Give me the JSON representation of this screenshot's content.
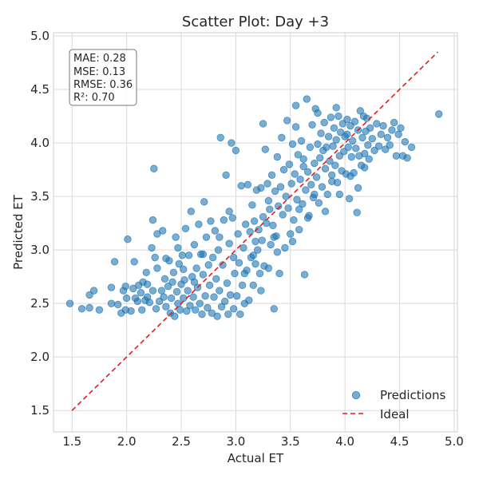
{
  "chart_data": {
    "type": "scatter",
    "title": "Scatter Plot: Day +3",
    "xlabel": "Actual ET",
    "ylabel": "Predicted ET",
    "xlim": [
      1.33,
      5.03
    ],
    "ylim": [
      1.3,
      5.03
    ],
    "xticks": [
      "1.5",
      "2.0",
      "2.5",
      "3.0",
      "3.5",
      "4.0",
      "4.5",
      "5.0"
    ],
    "yticks": [
      "1.5",
      "2.0",
      "2.5",
      "3.0",
      "3.5",
      "4.0",
      "4.5",
      "5.0"
    ],
    "grid": true,
    "legend_position": "bottom-right",
    "stats": [
      "MAE: 0.28",
      "MSE: 0.13",
      "RMSE: 0.36",
      "R²: 0.70"
    ],
    "series": [
      {
        "name": "Predictions",
        "color": "#1f77b4",
        "points": [
          [
            1.48,
            2.5
          ],
          [
            1.59,
            2.45
          ],
          [
            1.66,
            2.46
          ],
          [
            1.66,
            2.58
          ],
          [
            1.7,
            2.62
          ],
          [
            1.75,
            2.44
          ],
          [
            1.86,
            2.65
          ],
          [
            1.86,
            2.5
          ],
          [
            1.89,
            2.89
          ],
          [
            1.92,
            2.49
          ],
          [
            1.95,
            2.41
          ],
          [
            1.97,
            2.62
          ],
          [
            1.99,
            2.66
          ],
          [
            1.99,
            2.44
          ],
          [
            2.0,
            2.55
          ],
          [
            2.01,
            3.1
          ],
          [
            2.04,
            2.43
          ],
          [
            2.06,
            2.64
          ],
          [
            2.07,
            2.89
          ],
          [
            2.08,
            2.55
          ],
          [
            2.11,
            2.67
          ],
          [
            2.13,
            2.6
          ],
          [
            2.14,
            2.44
          ],
          [
            2.15,
            2.7
          ],
          [
            2.17,
            2.53
          ],
          [
            2.18,
            2.79
          ],
          [
            2.19,
            2.56
          ],
          [
            2.21,
            2.51
          ],
          [
            2.23,
            3.02
          ],
          [
            2.24,
            2.62
          ],
          [
            2.25,
            3.76
          ],
          [
            2.24,
            3.28
          ],
          [
            2.26,
            2.93
          ],
          [
            2.27,
            2.45
          ],
          [
            2.28,
            3.15
          ],
          [
            2.3,
            2.52
          ],
          [
            2.32,
            2.62
          ],
          [
            2.33,
            3.18
          ],
          [
            2.34,
            2.56
          ],
          [
            2.35,
            2.73
          ],
          [
            2.36,
            2.47
          ],
          [
            2.38,
            2.66
          ],
          [
            2.39,
            2.9
          ],
          [
            2.4,
            2.41
          ],
          [
            2.41,
            2.55
          ],
          [
            2.42,
            2.7
          ],
          [
            2.43,
            2.79
          ],
          [
            2.44,
            2.38
          ],
          [
            2.45,
            3.12
          ],
          [
            2.46,
            2.61
          ],
          [
            2.47,
            2.5
          ],
          [
            2.48,
            2.87
          ],
          [
            2.49,
            2.44
          ],
          [
            2.5,
            2.68
          ],
          [
            2.51,
            2.95
          ],
          [
            2.52,
            2.55
          ],
          [
            2.53,
            2.72
          ],
          [
            2.54,
            3.2
          ],
          [
            2.55,
            2.43
          ],
          [
            2.56,
            2.62
          ],
          [
            2.57,
            2.95
          ],
          [
            2.58,
            2.48
          ],
          [
            2.59,
            3.36
          ],
          [
            2.6,
            2.75
          ],
          [
            2.61,
            2.56
          ],
          [
            2.62,
            3.05
          ],
          [
            2.63,
            2.44
          ],
          [
            2.64,
            2.83
          ],
          [
            2.65,
            2.65
          ],
          [
            2.66,
            3.24
          ],
          [
            2.67,
            2.5
          ],
          [
            2.68,
            2.96
          ],
          [
            2.69,
            2.4
          ],
          [
            2.7,
            2.77
          ],
          [
            2.71,
            3.45
          ],
          [
            2.72,
            2.57
          ],
          [
            2.73,
            3.12
          ],
          [
            2.74,
            2.46
          ],
          [
            2.75,
            2.86
          ],
          [
            2.76,
            2.67
          ],
          [
            2.77,
            3.27
          ],
          [
            2.78,
            2.41
          ],
          [
            2.79,
            2.93
          ],
          [
            2.8,
            2.56
          ],
          [
            2.81,
            3.18
          ],
          [
            2.82,
            2.73
          ],
          [
            2.83,
            2.38
          ],
          [
            2.84,
            3.0
          ],
          [
            2.85,
            2.62
          ],
          [
            2.86,
            4.05
          ],
          [
            2.87,
            2.47
          ],
          [
            2.88,
            2.86
          ],
          [
            2.89,
            3.28
          ],
          [
            2.9,
            2.52
          ],
          [
            2.91,
            3.7
          ],
          [
            2.92,
            2.69
          ],
          [
            2.93,
            2.4
          ],
          [
            2.94,
            3.06
          ],
          [
            2.95,
            2.58
          ],
          [
            2.96,
            4.0
          ],
          [
            2.97,
            3.3
          ],
          [
            2.98,
            2.45
          ],
          [
            2.99,
            2.78
          ],
          [
            3.0,
            3.93
          ],
          [
            3.01,
            2.57
          ],
          [
            3.02,
            3.15
          ],
          [
            3.03,
            2.88
          ],
          [
            3.04,
            2.4
          ],
          [
            3.05,
            3.6
          ],
          [
            3.06,
            2.67
          ],
          [
            3.07,
            3.02
          ],
          [
            3.08,
            2.5
          ],
          [
            3.09,
            3.24
          ],
          [
            3.1,
            2.81
          ],
          [
            3.11,
            3.61
          ],
          [
            3.12,
            2.53
          ],
          [
            3.13,
            3.17
          ],
          [
            3.14,
            2.93
          ],
          [
            3.15,
            3.42
          ],
          [
            3.16,
            2.67
          ],
          [
            3.17,
            3.27
          ],
          [
            3.18,
            2.87
          ],
          [
            3.19,
            3.56
          ],
          [
            3.2,
            3.0
          ],
          [
            3.21,
            3.19
          ],
          [
            3.22,
            2.78
          ],
          [
            3.23,
            3.58
          ],
          [
            3.24,
            3.09
          ],
          [
            3.25,
            3.31
          ],
          [
            3.26,
            2.85
          ],
          [
            3.27,
            3.94
          ],
          [
            3.28,
            3.25
          ],
          [
            3.29,
            3.62
          ],
          [
            3.3,
            2.83
          ],
          [
            3.31,
            3.38
          ],
          [
            3.32,
            3.05
          ],
          [
            3.33,
            3.7
          ],
          [
            3.34,
            3.23
          ],
          [
            3.35,
            2.45
          ],
          [
            3.36,
            3.55
          ],
          [
            3.37,
            3.13
          ],
          [
            3.38,
            3.87
          ],
          [
            3.39,
            3.41
          ],
          [
            3.4,
            2.78
          ],
          [
            3.41,
            3.59
          ],
          [
            3.42,
            4.05
          ],
          [
            3.43,
            3.33
          ],
          [
            3.44,
            3.75
          ],
          [
            3.45,
            3.02
          ],
          [
            3.46,
            3.5
          ],
          [
            3.47,
            4.21
          ],
          [
            3.48,
            3.39
          ],
          [
            3.49,
            3.8
          ],
          [
            3.5,
            3.15
          ],
          [
            3.51,
            3.62
          ],
          [
            3.52,
            3.99
          ],
          [
            3.53,
            3.28
          ],
          [
            3.54,
            3.71
          ],
          [
            3.55,
            4.15
          ],
          [
            3.56,
            3.47
          ],
          [
            3.57,
            3.89
          ],
          [
            3.58,
            3.19
          ],
          [
            3.59,
            3.66
          ],
          [
            3.6,
            4.02
          ],
          [
            3.61,
            3.43
          ],
          [
            3.62,
            3.85
          ],
          [
            3.63,
            2.77
          ],
          [
            3.64,
            3.56
          ],
          [
            3.65,
            4.41
          ],
          [
            3.66,
            3.73
          ],
          [
            3.67,
            3.32
          ],
          [
            3.68,
            3.96
          ],
          [
            3.69,
            3.61
          ],
          [
            3.7,
            4.17
          ],
          [
            3.71,
            3.49
          ],
          [
            3.72,
            3.81
          ],
          [
            3.73,
            4.32
          ],
          [
            3.74,
            3.68
          ],
          [
            3.75,
            3.99
          ],
          [
            3.76,
            3.44
          ],
          [
            3.77,
            3.86
          ],
          [
            3.78,
            4.09
          ],
          [
            3.79,
            3.59
          ],
          [
            3.8,
            3.93
          ],
          [
            3.81,
            4.19
          ],
          [
            3.82,
            3.76
          ],
          [
            3.83,
            3.96
          ],
          [
            3.84,
            3.52
          ],
          [
            3.85,
            4.06
          ],
          [
            3.86,
            3.83
          ],
          [
            3.87,
            4.24
          ],
          [
            3.88,
            3.7
          ],
          [
            3.89,
            3.97
          ],
          [
            3.9,
            4.14
          ],
          [
            3.91,
            3.79
          ],
          [
            3.92,
            4.03
          ],
          [
            3.93,
            3.63
          ],
          [
            3.94,
            4.25
          ],
          [
            3.95,
            3.88
          ],
          [
            3.96,
            4.1
          ],
          [
            3.97,
            3.74
          ],
          [
            3.98,
            4.18
          ],
          [
            3.99,
            3.92
          ],
          [
            4.0,
            4.06
          ],
          [
            4.01,
            3.71
          ],
          [
            4.02,
            4.22
          ],
          [
            4.03,
            3.96
          ],
          [
            4.04,
            3.48
          ],
          [
            4.05,
            4.16
          ],
          [
            4.06,
            3.87
          ],
          [
            4.07,
            4.02
          ],
          [
            4.08,
            3.72
          ],
          [
            4.09,
            4.2
          ],
          [
            4.1,
            3.95
          ],
          [
            4.11,
            3.35
          ],
          [
            4.12,
            4.12
          ],
          [
            4.13,
            3.88
          ],
          [
            4.14,
            4.3
          ],
          [
            4.15,
            3.79
          ],
          [
            4.16,
            4.05
          ],
          [
            4.17,
            4.25
          ],
          [
            4.18,
            3.9
          ],
          [
            4.19,
            4.11
          ],
          [
            4.2,
            4.23
          ],
          [
            4.21,
            3.98
          ],
          [
            4.22,
            3.85
          ],
          [
            4.23,
            4.14
          ],
          [
            4.25,
            4.04
          ],
          [
            4.27,
            3.93
          ],
          [
            4.29,
            4.18
          ],
          [
            4.31,
            3.97
          ],
          [
            4.33,
            4.08
          ],
          [
            4.35,
            4.16
          ],
          [
            4.37,
            3.94
          ],
          [
            4.39,
            4.05
          ],
          [
            4.41,
            3.98
          ],
          [
            4.43,
            4.12
          ],
          [
            4.45,
            4.19
          ],
          [
            4.47,
            3.88
          ],
          [
            4.49,
            4.08
          ],
          [
            4.51,
            4.14
          ],
          [
            4.53,
            3.88
          ],
          [
            4.55,
            4.01
          ],
          [
            4.57,
            3.86
          ],
          [
            4.61,
            3.96
          ],
          [
            4.86,
            4.27
          ],
          [
            3.25,
            4.18
          ],
          [
            3.55,
            4.35
          ],
          [
            3.62,
            3.78
          ],
          [
            3.3,
            3.46
          ],
          [
            3.35,
            3.12
          ],
          [
            3.75,
            4.28
          ],
          [
            3.92,
            4.33
          ],
          [
            4.02,
            4.08
          ],
          [
            3.18,
            3.08
          ],
          [
            2.94,
            3.36
          ],
          [
            2.85,
            3.12
          ],
          [
            2.7,
            2.96
          ],
          [
            2.62,
            2.7
          ],
          [
            2.52,
            2.82
          ],
          [
            2.47,
            3.02
          ],
          [
            2.36,
            2.92
          ],
          [
            2.28,
            2.83
          ],
          [
            2.19,
            2.68
          ],
          [
            2.1,
            2.52
          ],
          [
            2.98,
            2.93
          ],
          [
            3.08,
            2.78
          ],
          [
            3.16,
            2.95
          ],
          [
            3.23,
            2.62
          ],
          [
            3.38,
            2.98
          ],
          [
            3.52,
            3.08
          ],
          [
            3.58,
            3.38
          ],
          [
            3.66,
            3.3
          ],
          [
            3.72,
            3.52
          ],
          [
            3.82,
            3.36
          ],
          [
            3.88,
            3.64
          ],
          [
            3.95,
            3.52
          ],
          [
            4.05,
            3.69
          ],
          [
            4.12,
            3.58
          ],
          [
            4.18,
            3.77
          ]
        ]
      },
      {
        "name": "Ideal",
        "color": "#e31a1c",
        "style": "dashed",
        "x": [
          1.5,
          4.85
        ],
        "y": [
          1.5,
          4.85
        ]
      }
    ]
  }
}
